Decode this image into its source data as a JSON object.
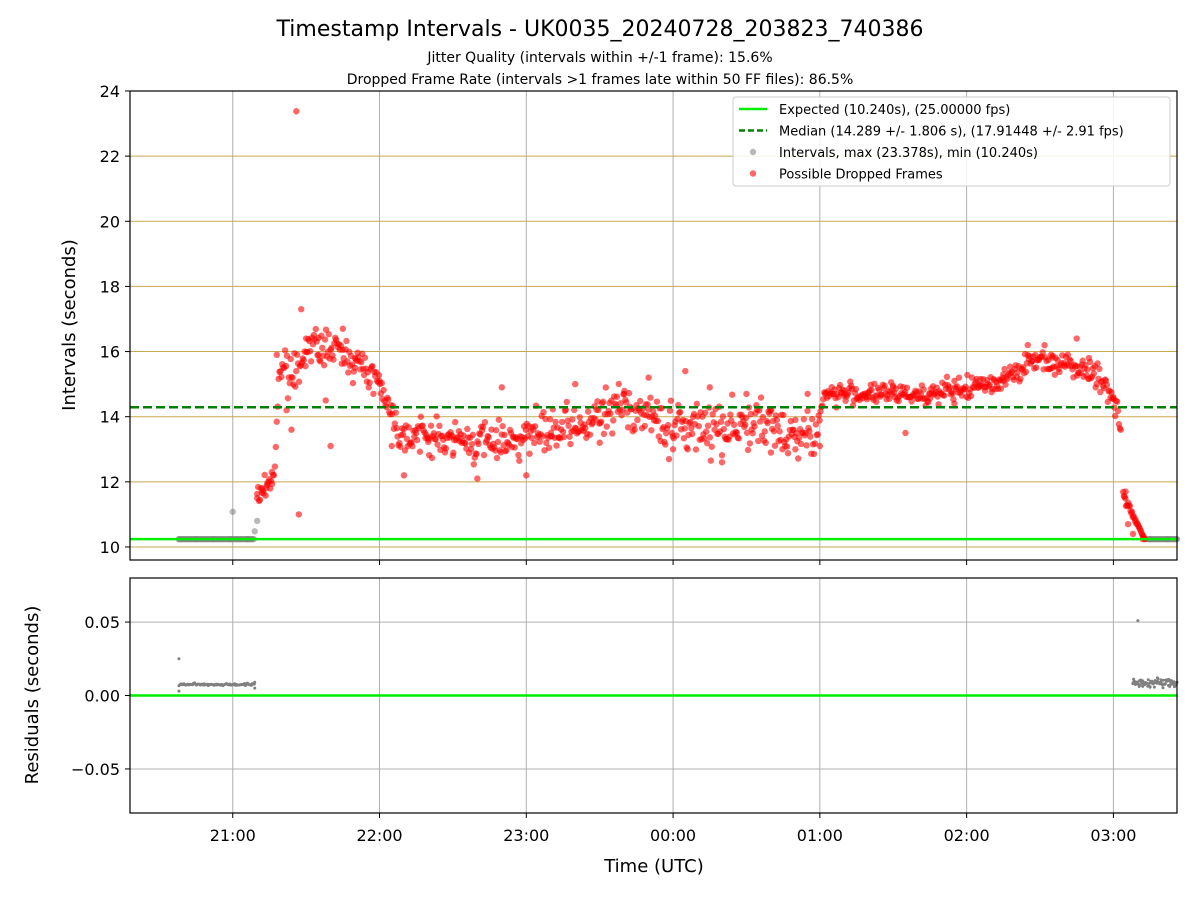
{
  "title": "Timestamp Intervals - UK0035_20240728_203823_740386",
  "subtitles": [
    "Jitter Quality (intervals within +/-1 frame): 15.6%",
    "Dropped Frame Rate (intervals >1 frames late within 50 FF files): 86.5%"
  ],
  "colors": {
    "expected": "#00ee00",
    "median": "#008000",
    "intervals": "#808080",
    "dropped": "#ff0000",
    "grid_top": "#c8a84b",
    "grid": "#b0b0b0"
  },
  "chart_data": [
    {
      "type": "scatter",
      "ylabel": "Intervals (seconds)",
      "ylim": [
        9.6,
        24.0
      ],
      "xlim": [
        "20:18",
        "03:26"
      ],
      "yticks": [
        10,
        12,
        14,
        16,
        18,
        20,
        22,
        24
      ],
      "grid": true,
      "legend_position": "top-right",
      "legend": [
        "Expected (10.240s), (25.00000 fps)",
        "Median (14.289 +/- 1.806 s), (17.91448 +/- 2.91 fps)",
        "Intervals, max (23.378s), min (10.240s)",
        "Possible Dropped Frames"
      ],
      "expected_interval": 10.24,
      "median_interval": 14.289,
      "series": [
        {
          "name": "Intervals, max (23.378s), min (10.240s)",
          "points": [
            [
              "20:38",
              10.24
            ],
            [
              "20:45",
              10.24
            ],
            [
              "20:52",
              10.24
            ],
            [
              "20:59",
              10.24
            ],
            [
              "21:00",
              11.08
            ],
            [
              "21:06",
              10.24
            ],
            [
              "21:09",
              10.48
            ],
            [
              "21:10",
              10.8
            ],
            [
              "03:15",
              10.24
            ],
            [
              "03:22",
              10.24
            ],
            [
              "03:26",
              10.24
            ]
          ]
        },
        {
          "name": "Possible Dropped Frames",
          "points": [
            [
              "21:10",
              11.5
            ],
            [
              "21:12",
              11.8
            ],
            [
              "21:14",
              11.9
            ],
            [
              "21:16",
              12.3
            ],
            [
              "21:18",
              15.9
            ],
            [
              "21:22",
              14.2
            ],
            [
              "21:24",
              13.6
            ],
            [
              "21:26",
              23.378
            ],
            [
              "21:27",
              11.0
            ],
            [
              "21:28",
              17.3
            ],
            [
              "21:30",
              16.4
            ],
            [
              "21:35",
              15.9
            ],
            [
              "21:38",
              14.5
            ],
            [
              "21:40",
              13.1
            ],
            [
              "21:45",
              16.7
            ],
            [
              "21:50",
              15.8
            ],
            [
              "22:00",
              15.1
            ],
            [
              "22:05",
              13.1
            ],
            [
              "22:10",
              12.2
            ],
            [
              "22:20",
              13.3
            ],
            [
              "22:30",
              12.8
            ],
            [
              "22:40",
              12.1
            ],
            [
              "22:50",
              14.9
            ],
            [
              "23:00",
              12.2
            ],
            [
              "23:10",
              13.4
            ],
            [
              "23:20",
              15.0
            ],
            [
              "23:30",
              13.2
            ],
            [
              "23:40",
              14.7
            ],
            [
              "23:50",
              15.2
            ],
            [
              "00:00",
              13.0
            ],
            [
              "00:05",
              15.4
            ],
            [
              "00:15",
              14.9
            ],
            [
              "00:20",
              12.6
            ],
            [
              "00:30",
              14.7
            ],
            [
              "00:40",
              12.9
            ],
            [
              "00:50",
              13.0
            ],
            [
              "00:55",
              14.7
            ],
            [
              "01:00",
              13.1
            ],
            [
              "01:10",
              14.8
            ],
            [
              "01:20",
              14.6
            ],
            [
              "01:30",
              14.9
            ],
            [
              "01:35",
              13.5
            ],
            [
              "01:45",
              14.7
            ],
            [
              "01:55",
              14.4
            ],
            [
              "02:05",
              14.9
            ],
            [
              "02:15",
              15.3
            ],
            [
              "02:25",
              16.2
            ],
            [
              "02:35",
              15.5
            ],
            [
              "02:45",
              16.4
            ],
            [
              "02:50",
              15.8
            ],
            [
              "03:00",
              14.6
            ],
            [
              "03:03",
              13.6
            ],
            [
              "03:05",
              11.7
            ],
            [
              "03:06",
              10.7
            ],
            [
              "03:08",
              10.4
            ],
            [
              "03:12",
              10.24
            ]
          ]
        }
      ]
    },
    {
      "type": "scatter",
      "xlabel": "Time (UTC)",
      "ylabel": "Residuals (seconds)",
      "ylim": [
        -0.08,
        0.08
      ],
      "yticks": [
        -0.05,
        0.0,
        0.05
      ],
      "ytick_labels": [
        "−0.05",
        "0.00",
        "0.05"
      ],
      "xticks": [
        "21:00",
        "22:00",
        "23:00",
        "00:00",
        "01:00",
        "02:00",
        "03:00"
      ],
      "grid": true,
      "series": [
        {
          "name": "Residuals",
          "points": [
            [
              "20:38",
              0.025
            ],
            [
              "20:38",
              0.003
            ],
            [
              "20:40",
              0.008
            ],
            [
              "20:45",
              0.0075
            ],
            [
              "20:50",
              0.0075
            ],
            [
              "20:55",
              0.007
            ],
            [
              "21:00",
              0.0075
            ],
            [
              "21:05",
              0.0075
            ],
            [
              "21:09",
              0.009
            ],
            [
              "21:09",
              0.005
            ],
            [
              "03:10",
              0.051
            ],
            [
              "03:08",
              0.008
            ],
            [
              "03:12",
              0.01
            ],
            [
              "03:15",
              0.006
            ],
            [
              "03:18",
              0.012
            ],
            [
              "03:20",
              0.008
            ],
            [
              "03:23",
              0.01
            ],
            [
              "03:25",
              0.006
            ]
          ]
        }
      ]
    }
  ]
}
